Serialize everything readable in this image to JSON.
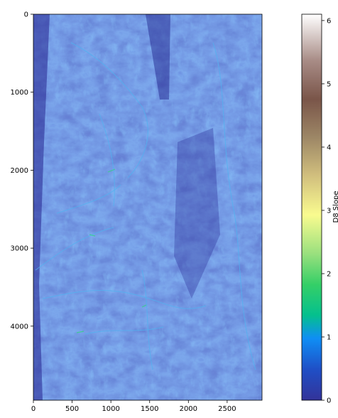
{
  "chart_data": {
    "type": "heatmap",
    "title": "",
    "xlabel": "",
    "ylabel": "",
    "xlim": [
      0,
      2950
    ],
    "ylim": [
      4950,
      0
    ],
    "x_ticks": [
      0,
      500,
      1000,
      1500,
      2000,
      2500
    ],
    "y_ticks": [
      0,
      1000,
      2000,
      3000,
      4000
    ],
    "colormap": "terrain",
    "colorbar": {
      "label": "D8 Slope",
      "range": [
        0,
        6.1
      ],
      "ticks": [
        0,
        1,
        2,
        3,
        4,
        5,
        6
      ]
    },
    "description_values": {
      "dominant_range": [
        0,
        1.2
      ],
      "max_highlight_value": 1.8
    }
  }
}
